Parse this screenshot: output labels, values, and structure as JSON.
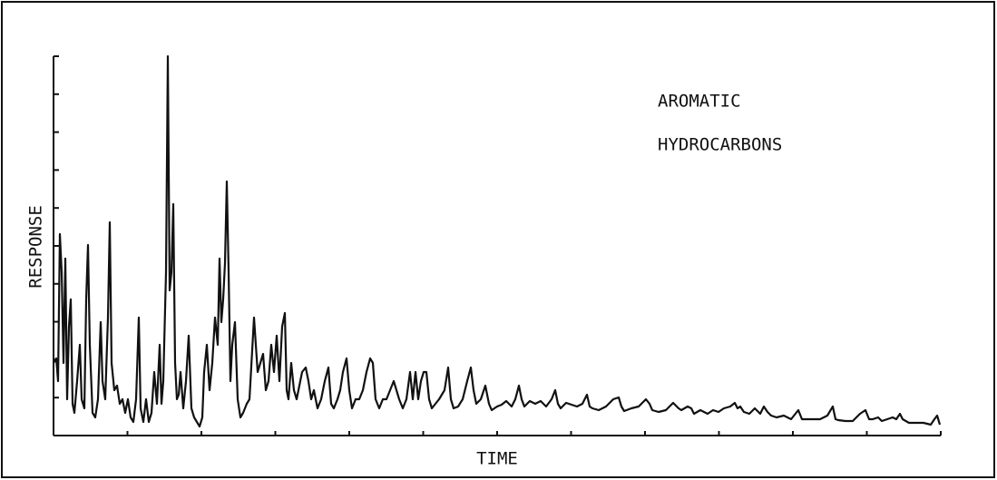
{
  "chart_data": {
    "type": "line",
    "annotation": [
      "AROMATIC",
      "HYDROCARBONS"
    ],
    "xlabel": "TIME",
    "ylabel": "RESPONSE",
    "color": "#111111",
    "xlim": [
      0,
      978
    ],
    "xticks": [
      0,
      81.5,
      163,
      244.5,
      326,
      407.5,
      489,
      570.5,
      652,
      733.5,
      815,
      896.5,
      978
    ],
    "ylim": [
      0,
      418
    ],
    "yticks": [
      0,
      41.8,
      83.6,
      125.4,
      167.2,
      209,
      250.8,
      292.6,
      334.4,
      376.2,
      418
    ],
    "x": [
      0,
      3,
      5,
      7,
      9,
      11,
      13,
      15,
      17,
      19,
      21,
      23,
      26,
      29,
      31,
      34,
      36,
      38,
      40,
      43,
      46,
      49,
      52,
      54,
      57,
      60,
      62,
      64,
      67,
      70,
      73,
      76,
      79,
      82,
      85,
      88,
      91,
      94,
      96,
      99,
      102,
      105,
      108,
      111,
      114,
      117,
      119,
      121,
      124,
      126,
      128,
      130,
      132,
      134,
      136,
      138,
      140,
      143,
      146,
      149,
      152,
      155,
      158,
      161,
      164,
      166,
      169,
      172,
      175,
      178,
      181,
      183,
      185,
      187,
      189,
      191,
      193,
      195,
      197,
      200,
      203,
      206,
      209,
      213,
      216,
      221,
      225,
      228,
      231,
      234,
      237,
      240,
      243,
      246,
      249,
      252,
      255,
      257,
      259,
      262,
      265,
      268,
      271,
      274,
      278,
      281,
      284,
      287,
      291,
      295,
      299,
      303,
      306,
      309,
      313,
      316,
      319,
      323,
      326,
      329,
      333,
      337,
      341,
      345,
      349,
      352,
      355,
      359,
      363,
      367,
      371,
      375,
      378,
      381,
      385,
      389,
      393,
      396,
      399,
      402,
      405,
      408,
      411,
      414,
      417,
      421,
      425,
      431,
      435,
      438,
      441,
      446,
      451,
      456,
      460,
      463,
      466,
      471,
      476,
      480,
      483,
      489,
      494,
      499,
      505,
      509,
      513,
      516,
      519,
      525,
      531,
      537,
      543,
      549,
      553,
      556,
      559,
      565,
      571,
      577,
      583,
      588,
      591,
      594,
      601,
      609,
      617,
      623,
      626,
      629,
      637,
      645,
      653,
      657,
      660,
      667,
      675,
      683,
      689,
      692,
      699,
      703,
      706,
      713,
      721,
      727,
      733,
      739,
      746,
      751,
      754,
      757,
      761,
      767,
      773,
      779,
      783,
      787,
      791,
      797,
      805,
      813,
      821,
      825,
      829,
      837,
      845,
      853,
      859,
      862,
      865,
      873,
      881,
      889,
      895,
      899,
      903,
      909,
      913,
      925,
      929,
      933,
      936,
      943,
      951,
      959,
      967,
      971,
      974,
      977
    ],
    "values": [
      80,
      85,
      60,
      222,
      180,
      80,
      195,
      40,
      120,
      150,
      35,
      25,
      60,
      100,
      40,
      30,
      150,
      210,
      100,
      25,
      20,
      40,
      125,
      60,
      40,
      130,
      235,
      80,
      50,
      55,
      35,
      40,
      25,
      40,
      20,
      15,
      40,
      130,
      30,
      15,
      40,
      15,
      25,
      70,
      35,
      100,
      35,
      60,
      180,
      418,
      160,
      180,
      255,
      80,
      40,
      45,
      70,
      30,
      60,
      110,
      30,
      20,
      15,
      10,
      20,
      70,
      100,
      50,
      80,
      130,
      100,
      195,
      125,
      150,
      190,
      280,
      180,
      60,
      100,
      125,
      40,
      20,
      25,
      35,
      40,
      130,
      70,
      80,
      90,
      50,
      60,
      100,
      70,
      110,
      60,
      120,
      135,
      50,
      40,
      80,
      50,
      40,
      55,
      70,
      75,
      60,
      40,
      50,
      30,
      40,
      60,
      75,
      35,
      30,
      40,
      50,
      70,
      85,
      50,
      30,
      40,
      40,
      50,
      70,
      85,
      80,
      40,
      30,
      40,
      40,
      50,
      60,
      50,
      40,
      30,
      40,
      70,
      40,
      70,
      40,
      60,
      70,
      70,
      40,
      30,
      35,
      40,
      50,
      75,
      40,
      30,
      32,
      40,
      60,
      75,
      50,
      35,
      40,
      55,
      35,
      28,
      32,
      34,
      38,
      32,
      40,
      55,
      40,
      32,
      38,
      35,
      38,
      32,
      40,
      50,
      35,
      30,
      36,
      34,
      32,
      35,
      45,
      32,
      30,
      28,
      32,
      40,
      42,
      32,
      27,
      30,
      32,
      40,
      35,
      28,
      26,
      28,
      36,
      30,
      28,
      32,
      30,
      24,
      28,
      24,
      28,
      26,
      30,
      32,
      36,
      30,
      32,
      26,
      24,
      30,
      24,
      32,
      26,
      22,
      20,
      22,
      18,
      28,
      18,
      18,
      18,
      18,
      22,
      32,
      18,
      17,
      16,
      16,
      24,
      28,
      18,
      18,
      20,
      16,
      20,
      18,
      24,
      18,
      14,
      14,
      14,
      12,
      18,
      22,
      12
    ]
  }
}
